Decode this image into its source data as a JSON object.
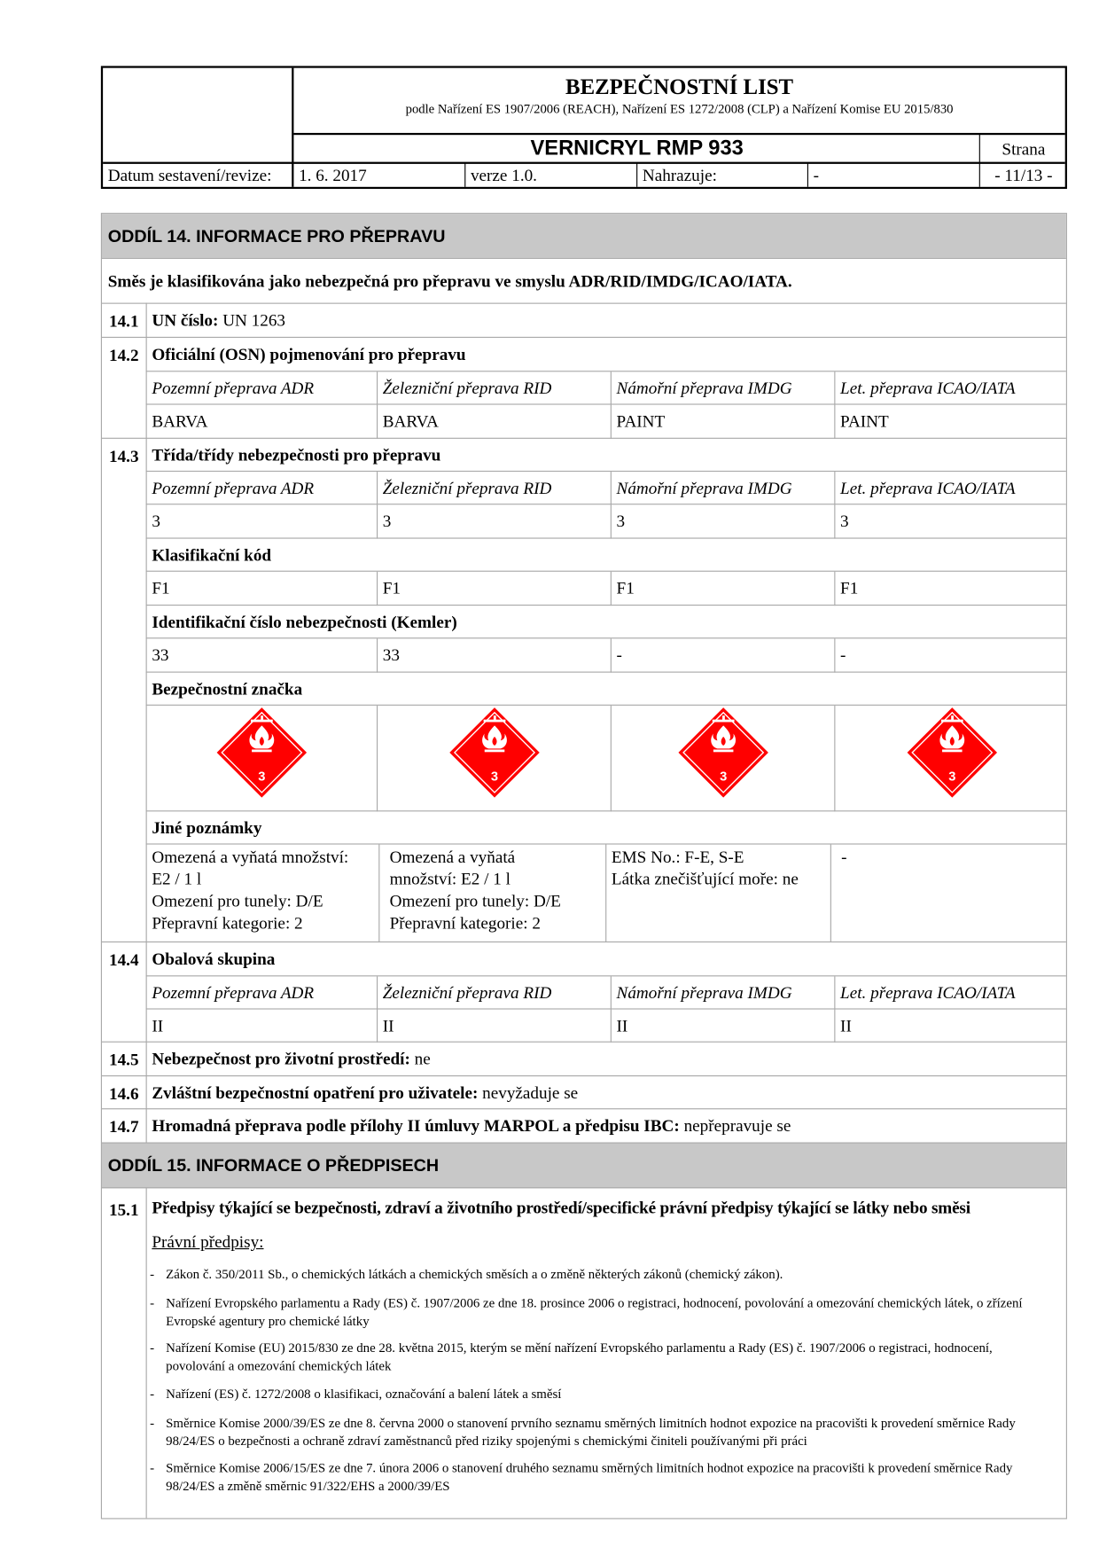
{
  "header": {
    "title": "BEZPEČNOSTNÍ LIST",
    "subtitle": "podle Nařízení ES 1907/2006 (REACH), Nařízení ES 1272/2008 (CLP) a Nařízení Komise EU 2015/830",
    "product": "VERNICRYL RMP 933",
    "date_label": "Datum sestavení/revize:",
    "date": "1. 6. 2017",
    "version": "verze 1.0.",
    "replaces_label": "Nahrazuje:",
    "replaces": "-",
    "page_label": "Strana",
    "page": "- 11/13 -"
  },
  "section14": {
    "title": "ODDÍL 14. INFORMACE PRO PŘEPRAVU",
    "intro": "Směs je klasifikována jako nebezpečná pro přepravu ve smyslu ADR/RID/IMDG/ICAO/IATA.",
    "modes": [
      "Pozemní přeprava ADR",
      "Železniční přeprava RID",
      "Námořní přeprava IMDG",
      "Let. přeprava ICAO/IATA"
    ],
    "s1": {
      "num": "14.1",
      "label": "UN číslo:",
      "value": " UN 1263"
    },
    "s2": {
      "num": "14.2",
      "label": "Oficiální (OSN) pojmenování pro přepravu",
      "values": [
        "BARVA",
        "BARVA",
        "PAINT",
        "PAINT"
      ]
    },
    "s3": {
      "num": "14.3",
      "label": "Třída/třídy nebezpečnosti pro přepravu",
      "values": [
        "3",
        "3",
        "3",
        "3"
      ],
      "code_label": "Klasifikační kód",
      "codes": [
        "F1",
        "F1",
        "F1",
        "F1"
      ],
      "kemler_label": "Identifikační číslo nebezpečnosti (Kemler)",
      "kemler": [
        "33",
        "33",
        "-",
        "-"
      ],
      "sign_label": "Bezpečnostní značka",
      "sign_icon": "flammable-liquid-class-3-icon",
      "sign_number": "3",
      "sign_color": "#ff0000",
      "notes_label": "Jiné poznámky",
      "notes": [
        [
          "Omezená a vyňatá množství:",
          "E2 / 1 l",
          "Omezení pro tunely: D/E",
          "Přepravní kategorie: 2"
        ],
        [
          "Omezená a vyňatá",
          "množství: E2 / 1 l",
          "Omezení pro tunely: D/E",
          "Přepravní kategorie: 2"
        ],
        [
          "EMS No.: F-E, S-E",
          "Látka znečišťující moře: ne"
        ],
        [
          "-"
        ]
      ]
    },
    "s4": {
      "num": "14.4",
      "label": "Obalová skupina",
      "values": [
        "II",
        "II",
        "II",
        "II"
      ]
    },
    "s5": {
      "num": "14.5",
      "label": "Nebezpečnost pro životní prostředí:",
      "value": " ne"
    },
    "s6": {
      "num": "14.6",
      "label": "Zvláštní bezpečnostní opatření pro uživatele:",
      "value": " nevyžaduje se"
    },
    "s7": {
      "num": "14.7",
      "label": "Hromadná přeprava podle přílohy II úmluvy MARPOL a předpisu IBC:",
      "value": " nepřepravuje se"
    }
  },
  "section15": {
    "title": "ODDÍL 15. INFORMACE O PŘEDPISECH",
    "s1": {
      "num": "15.1",
      "label": "Předpisy týkající se bezpečnosti, zdraví a životního prostředí/specifické právní předpisy týkající se látky nebo směsi"
    },
    "laws_label": "Právní předpisy:",
    "laws": [
      "Zákon č. 350/2011 Sb., o chemických látkách a chemických směsích a o změně některých zákonů (chemický zákon).",
      "Nařízení Evropského parlamentu a Rady (ES) č. 1907/2006 ze dne 18. prosince 2006 o registraci, hodnocení, povolování a omezování chemických látek, o zřízení Evropské agentury pro chemické látky",
      "Nařízení Komise (EU) 2015/830 ze dne 28. května 2015, kterým se mění nařízení Evropského parlamentu a Rady (ES) č. 1907/2006 o registraci, hodnocení, povolování a omezování chemických látek",
      "Nařízení (ES) č. 1272/2008 o klasifikaci, označování a balení látek a směsí",
      "Směrnice Komise 2000/39/ES ze dne 8. června 2000 o stanovení prvního seznamu směrných limitních hodnot expozice na pracovišti k provedení směrnice Rady 98/24/ES o bezpečnosti a ochraně zdraví zaměstnanců před riziky spojenými s chemickými činiteli používanými při práci",
      "Směrnice Komise 2006/15/ES ze dne 7. února 2006 o stanovení druhého seznamu směrných limitních hodnot expozice na pracovišti k provedení směrnice Rady 98/24/ES a změně směrnic 91/322/EHS a 2000/39/ES"
    ],
    "dash": "-"
  }
}
